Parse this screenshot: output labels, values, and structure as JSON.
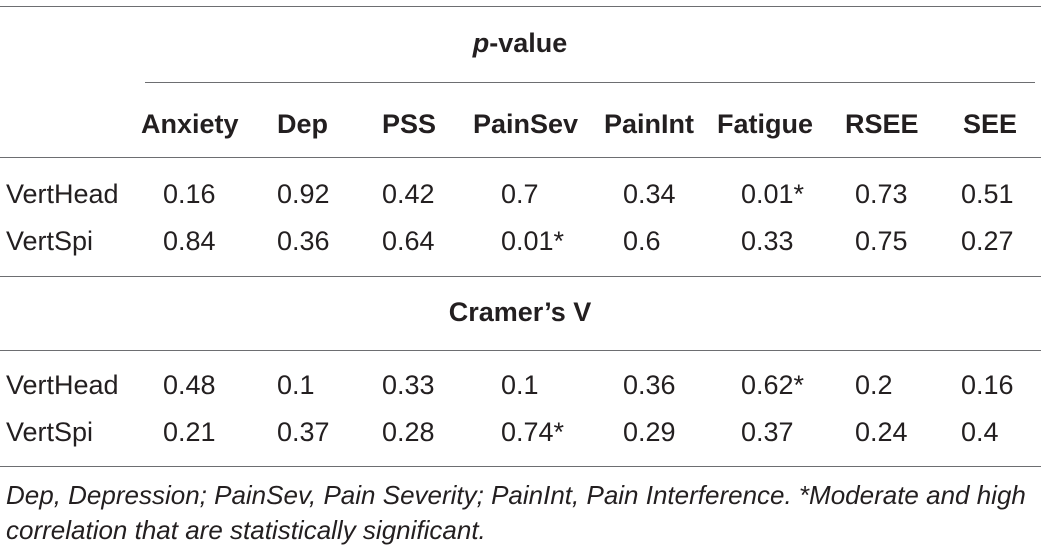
{
  "table": {
    "pvalue_header": {
      "italic": "p",
      "rest": "-value"
    },
    "columns": [
      "Anxiety",
      "Dep",
      "PSS",
      "PainSev",
      "PainInt",
      "Fatigue",
      "RSEE",
      "SEE"
    ],
    "pvalue_rows": [
      {
        "label": "VertHead",
        "values": [
          "0.16",
          "0.92",
          "0.42",
          "0.7",
          "0.34",
          "0.01*",
          "0.73",
          "0.51"
        ]
      },
      {
        "label": "VertSpi",
        "values": [
          "0.84",
          "0.36",
          "0.64",
          "0.01*",
          "0.6",
          "0.33",
          "0.75",
          "0.27"
        ]
      }
    ],
    "cramers_header": "Cramer’s V",
    "cramers_rows": [
      {
        "label": "VertHead",
        "values": [
          "0.48",
          "0.1",
          "0.33",
          "0.1",
          "0.36",
          "0.62*",
          "0.2",
          "0.16"
        ]
      },
      {
        "label": "VertSpi",
        "values": [
          "0.21",
          "0.37",
          "0.28",
          "0.74*",
          "0.29",
          "0.37",
          "0.24",
          "0.4"
        ]
      }
    ],
    "footnote": "Dep, Depression; PainSev, Pain Severity; PainInt, Pain Interference. *Moderate and high correlation that are statistically significant."
  }
}
